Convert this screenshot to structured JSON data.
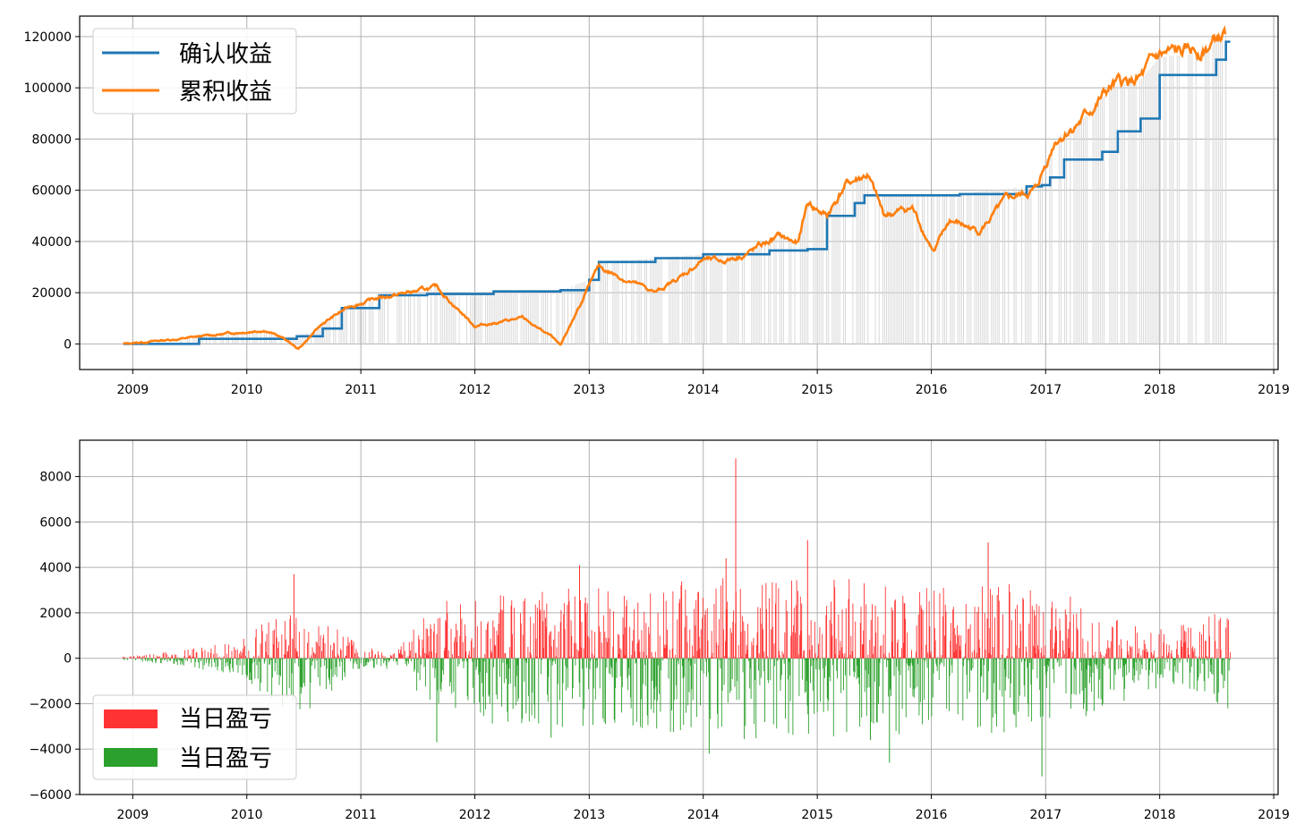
{
  "colors": {
    "confirmed": "#1f77b4",
    "cumulative": "#ff7f0e",
    "gain": "#ff3333",
    "loss": "#2ca02c",
    "vertical_lines": "#d9d9d9",
    "grid": "#b0b0b0"
  },
  "chart_data": [
    {
      "type": "line",
      "x_ticks": [
        "2009",
        "2010",
        "2011",
        "2012",
        "2013",
        "2014",
        "2015",
        "2016",
        "2017",
        "2018",
        "2019"
      ],
      "y_ticks": [
        "0",
        "20000",
        "40000",
        "60000",
        "80000",
        "100000",
        "120000"
      ],
      "xlim": [
        "2008-07-15",
        "2019-01-15"
      ],
      "ylim": [
        -10000,
        128000
      ],
      "grid": true,
      "legend_position": "upper-left",
      "series": [
        {
          "name": "确认收益",
          "x": [
            "2008-12-01",
            "2009-08-01",
            "2010-06-10",
            "2010-09-01",
            "2010-11-01",
            "2011-03-01",
            "2011-08-01",
            "2012-03-01",
            "2012-10-01",
            "2013-01-01",
            "2013-02-01",
            "2013-08-01",
            "2014-01-01",
            "2014-08-01",
            "2014-12-01",
            "2015-02-01",
            "2015-05-01",
            "2015-06-01",
            "2016-04-01",
            "2016-11-01",
            "2016-12-20",
            "2017-01-15",
            "2017-03-01",
            "2017-07-01",
            "2017-08-20",
            "2017-11-01",
            "2018-01-01",
            "2018-07-01",
            "2018-08-01"
          ],
          "y": [
            0,
            2000,
            3000,
            6000,
            14000,
            19000,
            19500,
            20500,
            21000,
            25000,
            32000,
            33500,
            35000,
            36500,
            37000,
            50000,
            55000,
            58000,
            58500,
            61500,
            62000,
            65000,
            72000,
            75000,
            83000,
            88000,
            105000,
            111000,
            118000
          ]
        },
        {
          "name": "累积收益",
          "x": [
            "2008-12-01",
            "2009-06-01",
            "2009-12-01",
            "2010-03-01",
            "2010-05-01",
            "2010-06-15",
            "2010-09-01",
            "2010-12-01",
            "2011-03-01",
            "2011-06-01",
            "2011-09-01",
            "2012-01-01",
            "2012-06-01",
            "2012-09-01",
            "2012-10-01",
            "2012-12-01",
            "2013-02-01",
            "2013-05-01",
            "2013-08-01",
            "2013-11-01",
            "2014-01-01",
            "2014-03-01",
            "2014-06-01",
            "2014-09-01",
            "2014-11-01",
            "2014-12-01",
            "2015-02-01",
            "2015-04-01",
            "2015-06-10",
            "2015-08-01",
            "2015-11-01",
            "2016-01-10",
            "2016-03-01",
            "2016-06-01",
            "2016-09-01",
            "2016-12-01",
            "2017-02-01",
            "2017-05-01",
            "2017-08-01",
            "2017-11-01",
            "2018-01-01",
            "2018-04-01",
            "2018-06-01",
            "2018-08-01"
          ],
          "y": [
            0,
            2000,
            4500,
            5500,
            2000,
            -2000,
            8000,
            15000,
            18000,
            20000,
            22000,
            7000,
            10000,
            3000,
            -1000,
            15000,
            30000,
            25000,
            20000,
            27000,
            33000,
            32000,
            36000,
            42000,
            39000,
            55000,
            50000,
            62000,
            66000,
            50000,
            53000,
            36000,
            48000,
            44000,
            56000,
            60000,
            80000,
            88000,
            100000,
            103000,
            112000,
            113000,
            116000,
            121000
          ]
        }
      ]
    },
    {
      "type": "bar",
      "x_ticks": [
        "2009",
        "2010",
        "2011",
        "2012",
        "2013",
        "2014",
        "2015",
        "2016",
        "2017",
        "2018",
        "2019"
      ],
      "y_ticks": [
        "−6000",
        "−4000",
        "−2000",
        "0",
        "2000",
        "4000",
        "6000",
        "8000"
      ],
      "xlim": [
        "2008-07-15",
        "2019-01-15"
      ],
      "ylim": [
        -6000,
        9600
      ],
      "grid": true,
      "legend_position": "lower-left",
      "series": [
        {
          "name": "当日盈亏",
          "color": "#ff3333"
        },
        {
          "name": "当日盈亏",
          "color": "#2ca02c"
        }
      ],
      "amplitude_envelope": {
        "x": [
          "2008-12-01",
          "2009-06-01",
          "2009-12-01",
          "2010-06-01",
          "2010-09-01",
          "2011-01-01",
          "2011-05-01",
          "2011-09-01",
          "2012-06-01",
          "2013-06-01",
          "2014-04-01",
          "2015-01-01",
          "2015-06-01",
          "2016-01-01",
          "2016-09-01",
          "2017-06-01",
          "2018-01-01",
          "2018-08-01"
        ],
        "y": [
          50,
          250,
          600,
          1800,
          1400,
          400,
          350,
          1800,
          2200,
          2200,
          2800,
          2400,
          2600,
          2200,
          2400,
          1800,
          900,
          1600
        ]
      },
      "spikes": [
        {
          "date": "2014-04-15",
          "value": 8800
        },
        {
          "date": "2014-12-01",
          "value": 5200
        },
        {
          "date": "2016-07-01",
          "value": 5100
        },
        {
          "date": "2014-03-15",
          "value": 4400
        },
        {
          "date": "2012-12-01",
          "value": 4100
        },
        {
          "date": "2016-12-20",
          "value": -5200
        },
        {
          "date": "2015-08-20",
          "value": -4600
        },
        {
          "date": "2014-01-20",
          "value": -4200
        },
        {
          "date": "2011-09-01",
          "value": -3700
        },
        {
          "date": "2015-06-20",
          "value": -3600
        },
        {
          "date": "2010-06-01",
          "value": 3700
        },
        {
          "date": "2012-09-01",
          "value": -3500
        }
      ]
    }
  ]
}
